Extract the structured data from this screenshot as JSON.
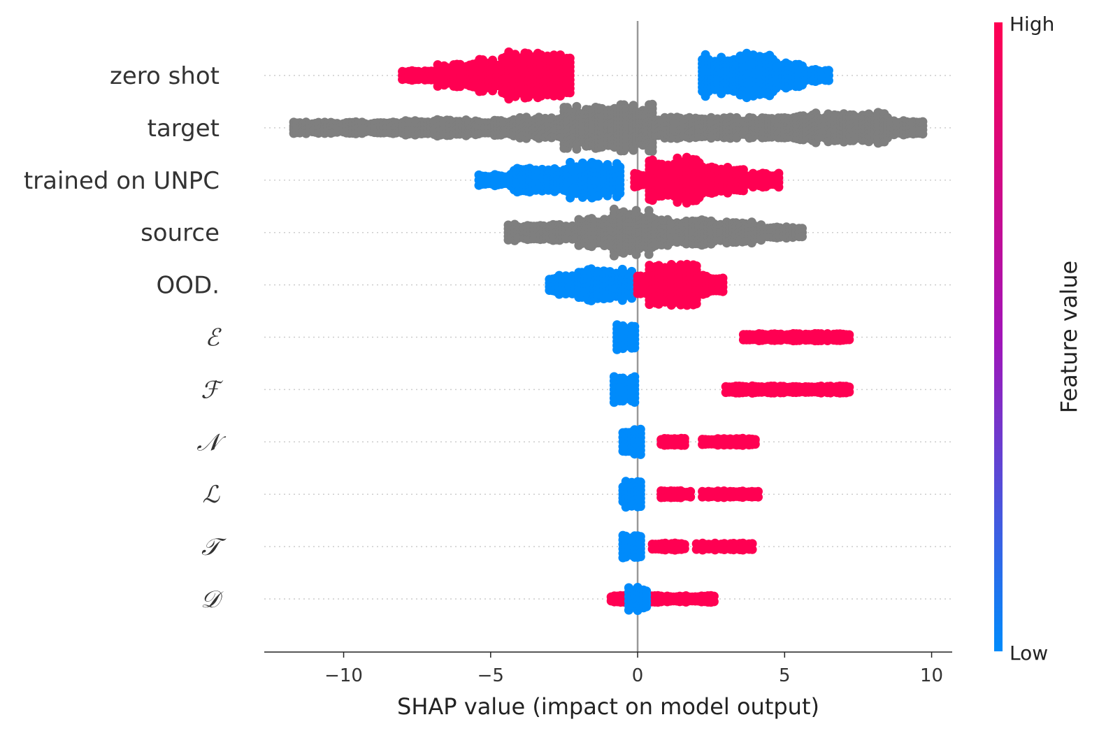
{
  "chart_data": {
    "type": "scatter",
    "subtype": "shap-beeswarm",
    "title": "",
    "xlabel": "SHAP value (impact on model output)",
    "ylabel": "",
    "xlim": [
      -12.7,
      10.7
    ],
    "x_ticks": [
      -10,
      -5,
      0,
      5,
      10
    ],
    "x_tick_labels": [
      "−10",
      "−5",
      "0",
      "5",
      "10"
    ],
    "grid": "horizontal dotted per feature",
    "colors": {
      "low": "#008bfb",
      "high": "#ff0052",
      "mid": "#a214b8",
      "neutral": "#7f7f7f",
      "zero_line": "#999999"
    },
    "colorbar": {
      "label": "Feature value",
      "high_label": "High",
      "low_label": "Low",
      "placement": "right"
    },
    "features": [
      {
        "name": "zero shot",
        "math": false,
        "groups": [
          {
            "color": "high",
            "segments": [
              [
                -8.0,
                -6.8,
                0.2
              ],
              [
                -6.8,
                -5.6,
                0.5
              ],
              [
                -5.6,
                -4.6,
                0.7
              ],
              [
                -4.6,
                -2.3,
                1.0
              ]
            ]
          },
          {
            "color": "low",
            "segments": [
              [
                2.2,
                3.6,
                0.9
              ],
              [
                3.6,
                4.6,
                1.0
              ],
              [
                4.6,
                5.6,
                0.55
              ],
              [
                5.6,
                6.5,
                0.25
              ]
            ]
          }
        ]
      },
      {
        "name": "target",
        "math": false,
        "groups": [
          {
            "color": "neutral",
            "segments": [
              [
                -11.7,
                -8.0,
                0.25
              ],
              [
                -8.0,
                -4.0,
                0.35
              ],
              [
                -4.0,
                -2.5,
                0.45
              ],
              [
                -2.5,
                0.5,
                1.0
              ],
              [
                0.5,
                2.5,
                0.45
              ],
              [
                2.5,
                5.0,
                0.45
              ],
              [
                5.0,
                8.5,
                0.65
              ],
              [
                8.5,
                9.7,
                0.3
              ]
            ]
          }
        ]
      },
      {
        "name": "trained on UNPC",
        "math": false,
        "groups": [
          {
            "color": "low",
            "segments": [
              [
                -5.4,
                -4.2,
                0.25
              ],
              [
                -4.2,
                -2.4,
                0.5
              ],
              [
                -2.4,
                -0.6,
                0.75
              ]
            ]
          },
          {
            "color": "high",
            "segments": [
              [
                -0.1,
                0.4,
                0.3
              ],
              [
                0.4,
                2.2,
                1.0
              ],
              [
                2.2,
                3.6,
                0.6
              ],
              [
                3.6,
                4.8,
                0.3
              ]
            ]
          }
        ]
      },
      {
        "name": "source",
        "math": false,
        "groups": [
          {
            "color": "neutral",
            "segments": [
              [
                -4.4,
                -2.0,
                0.35
              ],
              [
                -2.0,
                -0.8,
                0.6
              ],
              [
                -0.8,
                0.6,
                1.0
              ],
              [
                0.6,
                2.5,
                0.55
              ],
              [
                2.5,
                4.2,
                0.45
              ],
              [
                4.2,
                5.6,
                0.25
              ]
            ]
          }
        ]
      },
      {
        "name": "OOD.",
        "math": false,
        "groups": [
          {
            "color": "low",
            "segments": [
              [
                -3.0,
                -2.0,
                0.4
              ],
              [
                -2.0,
                -0.2,
                0.7
              ]
            ]
          },
          {
            "color": "high",
            "segments": [
              [
                0.0,
                0.4,
                0.4
              ],
              [
                0.4,
                2.0,
                0.9
              ],
              [
                2.0,
                2.9,
                0.4
              ]
            ]
          }
        ]
      },
      {
        "name": "ℰ",
        "math": true,
        "groups": [
          {
            "color": "low",
            "segments": [
              [
                -0.7,
                -0.1,
                0.55
              ]
            ]
          },
          {
            "color": "high",
            "segments": [
              [
                3.6,
                7.2,
                0.15
              ]
            ]
          }
        ]
      },
      {
        "name": "ℱ",
        "math": true,
        "groups": [
          {
            "color": "low",
            "segments": [
              [
                -0.8,
                -0.1,
                0.55
              ]
            ]
          },
          {
            "color": "high",
            "segments": [
              [
                3.0,
                3.8,
                0.15
              ],
              [
                3.9,
                7.2,
                0.15
              ]
            ]
          }
        ]
      },
      {
        "name": "𝒩",
        "math": true,
        "groups": [
          {
            "color": "low",
            "segments": [
              [
                -0.5,
                0.1,
                0.55
              ]
            ]
          },
          {
            "color": "high",
            "segments": [
              [
                0.8,
                1.6,
                0.15
              ],
              [
                2.2,
                4.0,
                0.15
              ]
            ]
          }
        ]
      },
      {
        "name": "ℒ",
        "math": true,
        "groups": [
          {
            "color": "low",
            "segments": [
              [
                -0.5,
                0.1,
                0.55
              ]
            ]
          },
          {
            "color": "high",
            "segments": [
              [
                0.8,
                1.8,
                0.15
              ],
              [
                2.2,
                4.1,
                0.15
              ]
            ]
          }
        ]
      },
      {
        "name": "𝒯",
        "math": true,
        "groups": [
          {
            "color": "low",
            "segments": [
              [
                -0.5,
                0.1,
                0.55
              ]
            ]
          },
          {
            "color": "high",
            "segments": [
              [
                0.5,
                1.6,
                0.15
              ],
              [
                2.0,
                3.9,
                0.15
              ]
            ]
          }
        ]
      },
      {
        "name": "𝒟",
        "math": true,
        "groups": [
          {
            "color": "high",
            "segments": [
              [
                -0.9,
                2.6,
                0.15
              ]
            ]
          },
          {
            "color": "low",
            "segments": [
              [
                -0.3,
                0.3,
                0.55
              ]
            ]
          }
        ]
      }
    ]
  }
}
